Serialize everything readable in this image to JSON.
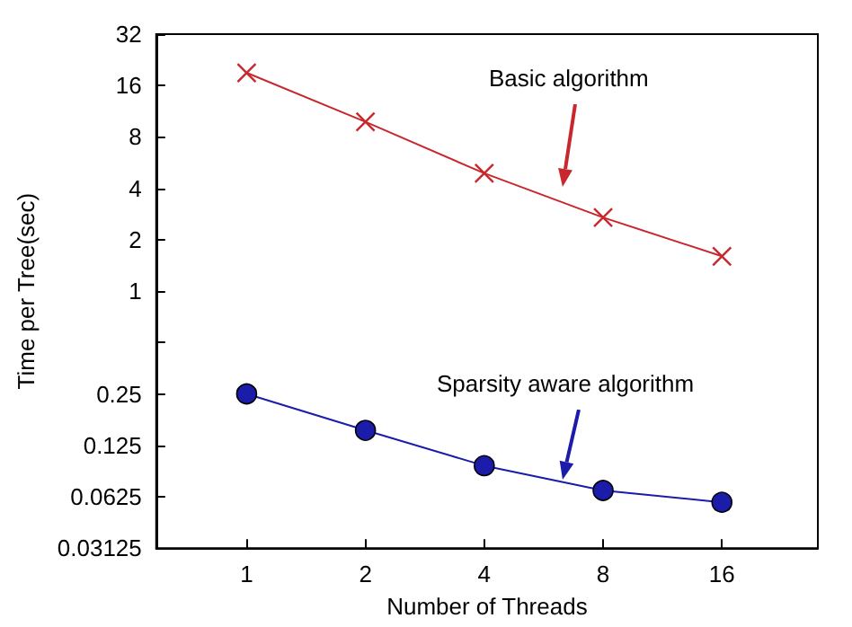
{
  "chart_data": {
    "type": "line",
    "xlabel": "Number of Threads",
    "ylabel": "Time per Tree(sec)",
    "log": "xy",
    "x": [
      1,
      2,
      4,
      8,
      16
    ],
    "xlim": [
      0.59,
      28
    ],
    "xticks": [
      1,
      2,
      4,
      8,
      16
    ],
    "ylim": [
      0.03125,
      32
    ],
    "yticks": [
      0.03125,
      0.0625,
      0.125,
      0.25,
      {
        "value": 0.5,
        "label": null
      },
      1,
      2,
      4,
      8,
      16,
      32
    ],
    "series": [
      {
        "color": "#c8282d",
        "marker": "cross",
        "values": [
          19,
          9.8,
          4.9,
          2.7,
          1.6
        ]
      },
      {
        "color": "#1c1caa",
        "marker": "circle",
        "values": [
          0.25,
          0.153,
          0.095,
          0.068,
          0.058
        ]
      }
    ],
    "annotations": [
      "Basic algorithm",
      "Sparsity aware algorithm"
    ],
    "grid": false
  }
}
